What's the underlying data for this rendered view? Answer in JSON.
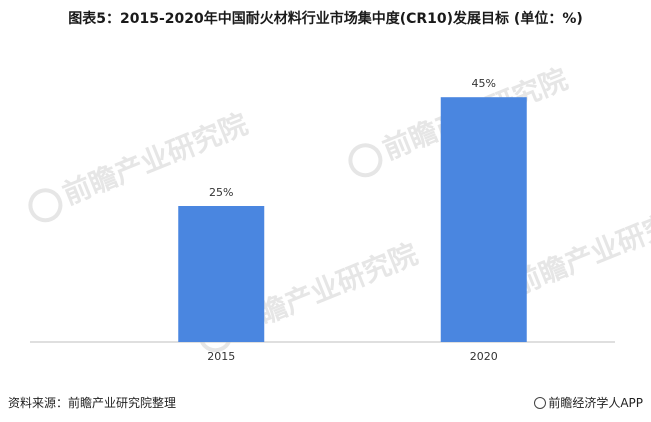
{
  "title": "图表5：2015-2020年中国耐火材料行业市场集中度(CR10)发展目标 (单位：%)",
  "watermark": "前瞻产业研究院",
  "source": "资料来源：前瞻产业研究院整理",
  "brand": "前瞻经济学人APP",
  "colors": {
    "bar": "#4a86e0",
    "axis": "#bfbfbf"
  },
  "chart_data": {
    "type": "bar",
    "categories": [
      "2015",
      "2020"
    ],
    "values": [
      25,
      45
    ],
    "data_labels": [
      "25%",
      "45%"
    ],
    "title": "图表5：2015-2020年中国耐火材料行业市场集中度(CR10)发展目标 (单位：%)",
    "xlabel": "",
    "ylabel": "",
    "ylim": [
      0,
      50
    ],
    "grid": false,
    "legend": "none"
  }
}
